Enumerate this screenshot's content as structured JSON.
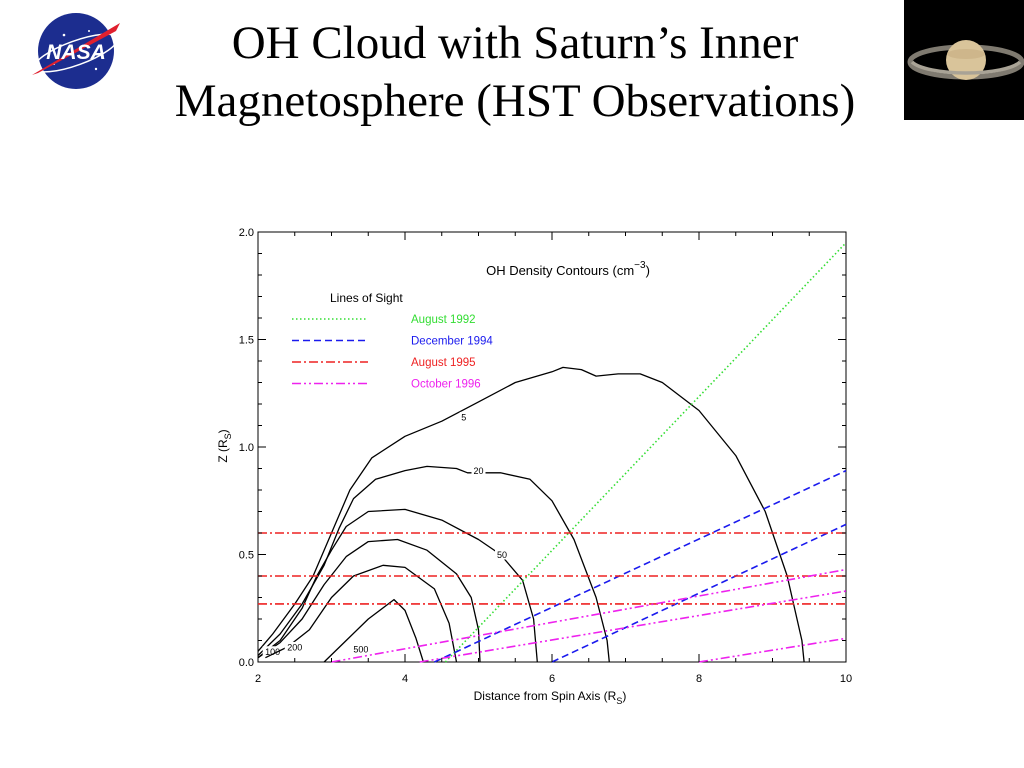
{
  "slide": {
    "title_line1": "OH Cloud with Saturn’s Inner",
    "title_line2": "Magnetosphere (HST Observations)",
    "logo_text": "NASA"
  },
  "chart_data": {
    "type": "line",
    "title_prefix": "OH Density Contours (cm",
    "title_exp": "−3",
    "title_suffix": ")",
    "xlabel_main": "Distance from Spin Axis (R",
    "xlabel_sub": "S",
    "xlabel_end": ")",
    "ylabel_main": "Z (R",
    "ylabel_sub": "S",
    "ylabel_end": ")",
    "xlim": [
      2,
      10
    ],
    "ylim": [
      0,
      2
    ],
    "xticks": [
      "2",
      "4",
      "6",
      "8",
      "10"
    ],
    "yticks": [
      "0.0",
      "0.5",
      "1.0",
      "1.5",
      "2.0"
    ],
    "legend_title": "Lines of Sight",
    "legend_position": "top-left",
    "lines_of_sight": [
      {
        "name": "August 1992",
        "color": "#33dd33",
        "dash": "dotted",
        "lines": [
          [
            [
              4.55,
              0
            ],
            [
              10,
              1.95
            ]
          ]
        ]
      },
      {
        "name": "December 1994",
        "color": "#1a1aee",
        "dash": "dashed",
        "lines": [
          [
            [
              4.4,
              0
            ],
            [
              10,
              0.89
            ]
          ],
          [
            [
              6.0,
              0
            ],
            [
              10,
              0.64
            ]
          ]
        ]
      },
      {
        "name": "August 1995",
        "color": "#ee2222",
        "dash": "dashdot",
        "lines": [
          [
            [
              2,
              0.6
            ],
            [
              10,
              0.6
            ]
          ],
          [
            [
              2,
              0.4
            ],
            [
              10,
              0.4
            ]
          ],
          [
            [
              2,
              0.27
            ],
            [
              10,
              0.27
            ]
          ]
        ]
      },
      {
        "name": "October 1996",
        "color": "#ee22ee",
        "dash": "dashdotdot",
        "lines": [
          [
            [
              3.0,
              0
            ],
            [
              10,
              0.43
            ]
          ],
          [
            [
              4.2,
              0
            ],
            [
              10,
              0.33
            ]
          ],
          [
            [
              8.0,
              0
            ],
            [
              10,
              0.11
            ]
          ]
        ]
      }
    ],
    "contours": [
      {
        "level": "5",
        "label_at": [
          4.8,
          1.14
        ],
        "points": [
          [
            2.0,
            0.05
          ],
          [
            2.2,
            0.13
          ],
          [
            2.5,
            0.27
          ],
          [
            2.75,
            0.4
          ],
          [
            3.0,
            0.6
          ],
          [
            3.25,
            0.8
          ],
          [
            3.55,
            0.95
          ],
          [
            4.0,
            1.05
          ],
          [
            4.5,
            1.12
          ],
          [
            5.0,
            1.21
          ],
          [
            5.5,
            1.3
          ],
          [
            6.0,
            1.35
          ],
          [
            6.15,
            1.37
          ],
          [
            6.4,
            1.36
          ],
          [
            6.6,
            1.33
          ],
          [
            6.9,
            1.34
          ],
          [
            7.2,
            1.34
          ],
          [
            7.5,
            1.3
          ],
          [
            8.0,
            1.17
          ],
          [
            8.5,
            0.96
          ],
          [
            8.9,
            0.7
          ],
          [
            9.2,
            0.4
          ],
          [
            9.4,
            0.1
          ],
          [
            9.43,
            0
          ]
        ]
      },
      {
        "level": "20",
        "label_at": [
          5.0,
          0.89
        ],
        "points": [
          [
            2.0,
            0.03
          ],
          [
            2.3,
            0.13
          ],
          [
            2.6,
            0.27
          ],
          [
            2.9,
            0.45
          ],
          [
            3.1,
            0.62
          ],
          [
            3.3,
            0.76
          ],
          [
            3.6,
            0.85
          ],
          [
            4.0,
            0.89
          ],
          [
            4.3,
            0.91
          ],
          [
            4.7,
            0.9
          ],
          [
            4.85,
            0.88
          ],
          [
            5.3,
            0.88
          ],
          [
            5.7,
            0.85
          ],
          [
            6.0,
            0.75
          ],
          [
            6.3,
            0.57
          ],
          [
            6.6,
            0.3
          ],
          [
            6.75,
            0.1
          ],
          [
            6.78,
            0
          ]
        ]
      },
      {
        "level": "50",
        "label_at": [
          5.32,
          0.5
        ],
        "points": [
          [
            2.0,
            0.02
          ],
          [
            2.3,
            0.1
          ],
          [
            2.6,
            0.25
          ],
          [
            2.8,
            0.4
          ],
          [
            3.0,
            0.52
          ],
          [
            3.2,
            0.63
          ],
          [
            3.5,
            0.7
          ],
          [
            4.0,
            0.71
          ],
          [
            4.5,
            0.66
          ],
          [
            5.0,
            0.57
          ],
          [
            5.3,
            0.5
          ],
          [
            5.6,
            0.38
          ],
          [
            5.75,
            0.2
          ],
          [
            5.8,
            0
          ]
        ]
      },
      {
        "level": "100",
        "label_at": [
          2.2,
          0.05
        ],
        "points": [
          [
            2.0,
            0.02
          ],
          [
            2.3,
            0.09
          ],
          [
            2.6,
            0.2
          ],
          [
            2.9,
            0.36
          ],
          [
            3.2,
            0.49
          ],
          [
            3.5,
            0.56
          ],
          [
            3.9,
            0.57
          ],
          [
            4.3,
            0.52
          ],
          [
            4.7,
            0.41
          ],
          [
            4.9,
            0.3
          ],
          [
            5.0,
            0.15
          ],
          [
            5.02,
            0
          ]
        ]
      },
      {
        "level": "200",
        "label_at": [
          2.5,
          0.07
        ],
        "points": [
          [
            2.1,
            0.02
          ],
          [
            2.4,
            0.07
          ],
          [
            2.7,
            0.15
          ],
          [
            3.0,
            0.3
          ],
          [
            3.3,
            0.4
          ],
          [
            3.7,
            0.45
          ],
          [
            4.0,
            0.44
          ],
          [
            4.4,
            0.34
          ],
          [
            4.6,
            0.18
          ],
          [
            4.7,
            0
          ]
        ]
      },
      {
        "level": "500",
        "label_at": [
          3.4,
          0.06
        ],
        "points": [
          [
            2.9,
            0.0
          ],
          [
            3.2,
            0.1
          ],
          [
            3.5,
            0.2
          ],
          [
            3.85,
            0.29
          ],
          [
            4.0,
            0.24
          ],
          [
            4.15,
            0.11
          ],
          [
            4.25,
            0
          ]
        ]
      }
    ]
  }
}
